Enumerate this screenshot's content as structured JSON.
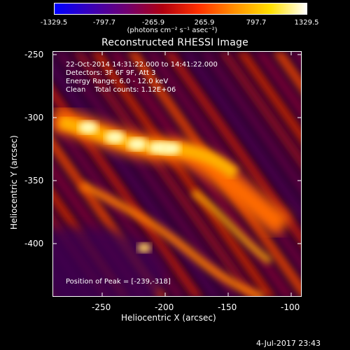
{
  "colorbar": {
    "ticks": [
      "-1329.5",
      "-797.7",
      "-265.9",
      "265.9",
      "797.7",
      "1329.5"
    ],
    "unit": "(photons cm⁻² s⁻¹ asec⁻²)",
    "colors": [
      "#0000ff",
      "#3a00b8",
      "#700070",
      "#b00010",
      "#ff3000",
      "#ff9000",
      "#ffe000",
      "#ffffff"
    ]
  },
  "title": "Reconstructed RHESSI Image",
  "overlay": {
    "line1": "22-Oct-2014 14:31:22.000 to 14:41:22.000",
    "line2": "Detectors: 3F 6F 9F, Att 3",
    "line3": "Energy Range: 6.0 - 12.0 keV",
    "line4": "Clean    Total counts: 1.12E+06",
    "peak": "Position of Peak = [-239,-318]"
  },
  "axes": {
    "xlabel": "Heliocentric X (arcsec)",
    "ylabel": "Heliocentric Y (arcsec)",
    "xticks": [
      "-250",
      "-200",
      "-150",
      "-100"
    ],
    "yticks": [
      "-250",
      "-300",
      "-350",
      "-400"
    ]
  },
  "timestamp": "4-Jul-2017 23:43"
}
